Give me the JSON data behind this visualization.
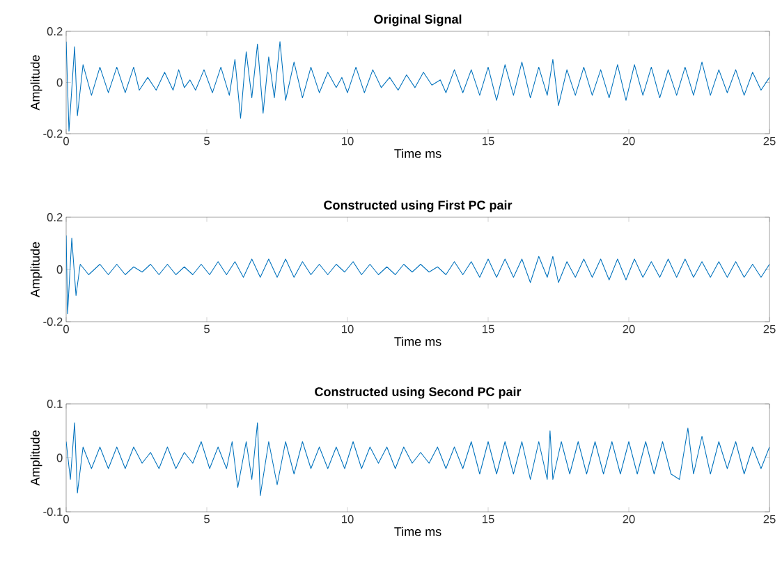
{
  "chart_data": [
    {
      "type": "line",
      "title": "Original Signal",
      "xlabel": "Time ms",
      "ylabel": "Amplitude",
      "xlim": [
        0,
        25
      ],
      "ylim": [
        -0.2,
        0.2
      ],
      "xticks": [
        0,
        5,
        10,
        15,
        20,
        25
      ],
      "yticks": [
        -0.2,
        0,
        0.2
      ],
      "x": [
        0,
        0.1,
        0.3,
        0.4,
        0.6,
        0.9,
        1.2,
        1.5,
        1.8,
        2.1,
        2.4,
        2.6,
        2.9,
        3.2,
        3.5,
        3.8,
        4.0,
        4.2,
        4.4,
        4.6,
        4.9,
        5.2,
        5.5,
        5.8,
        6.0,
        6.2,
        6.4,
        6.6,
        6.8,
        7.0,
        7.2,
        7.4,
        7.6,
        7.8,
        8.1,
        8.4,
        8.7,
        9.0,
        9.3,
        9.6,
        9.8,
        10.0,
        10.3,
        10.6,
        10.9,
        11.2,
        11.5,
        11.8,
        12.1,
        12.4,
        12.7,
        13.0,
        13.3,
        13.5,
        13.8,
        14.1,
        14.4,
        14.7,
        15.0,
        15.3,
        15.6,
        15.9,
        16.2,
        16.5,
        16.8,
        17.1,
        17.3,
        17.5,
        17.8,
        18.1,
        18.4,
        18.7,
        19.0,
        19.3,
        19.6,
        19.9,
        20.2,
        20.5,
        20.8,
        21.1,
        21.4,
        21.7,
        22.0,
        22.3,
        22.6,
        22.9,
        23.2,
        23.5,
        23.8,
        24.1,
        24.4,
        24.7,
        25.0
      ],
      "series": [
        {
          "color": "#0072bd",
          "values": [
            0.16,
            -0.19,
            0.14,
            -0.13,
            0.07,
            -0.05,
            0.06,
            -0.04,
            0.06,
            -0.04,
            0.06,
            -0.03,
            0.02,
            -0.03,
            0.04,
            -0.03,
            0.05,
            -0.02,
            0.01,
            -0.03,
            0.05,
            -0.04,
            0.06,
            -0.05,
            0.09,
            -0.14,
            0.12,
            -0.06,
            0.15,
            -0.12,
            0.1,
            -0.06,
            0.16,
            -0.07,
            0.08,
            -0.06,
            0.06,
            -0.04,
            0.04,
            -0.02,
            0.02,
            -0.04,
            0.06,
            -0.04,
            0.05,
            -0.02,
            0.02,
            -0.03,
            0.03,
            -0.02,
            0.04,
            -0.01,
            0.01,
            -0.04,
            0.05,
            -0.04,
            0.05,
            -0.05,
            0.06,
            -0.07,
            0.07,
            -0.05,
            0.08,
            -0.06,
            0.06,
            -0.05,
            0.09,
            -0.09,
            0.05,
            -0.05,
            0.06,
            -0.05,
            0.05,
            -0.06,
            0.07,
            -0.07,
            0.07,
            -0.05,
            0.06,
            -0.06,
            0.05,
            -0.05,
            0.06,
            -0.05,
            0.08,
            -0.05,
            0.05,
            -0.04,
            0.05,
            -0.05,
            0.04,
            -0.03,
            0.02
          ]
        }
      ]
    },
    {
      "type": "line",
      "title": "Constructed using First PC pair",
      "xlabel": "Time ms",
      "ylabel": "Amplitude",
      "xlim": [
        0,
        25
      ],
      "ylim": [
        -0.2,
        0.2
      ],
      "xticks": [
        0,
        5,
        10,
        15,
        20,
        25
      ],
      "yticks": [
        -0.2,
        0,
        0.2
      ],
      "x": [
        0,
        0.05,
        0.2,
        0.35,
        0.5,
        0.8,
        1.2,
        1.5,
        1.8,
        2.1,
        2.4,
        2.7,
        3.0,
        3.3,
        3.6,
        3.9,
        4.2,
        4.5,
        4.8,
        5.1,
        5.4,
        5.7,
        6.0,
        6.3,
        6.6,
        6.9,
        7.2,
        7.5,
        7.8,
        8.1,
        8.4,
        8.7,
        9.0,
        9.3,
        9.6,
        9.9,
        10.2,
        10.5,
        10.8,
        11.1,
        11.4,
        11.7,
        12.0,
        12.3,
        12.6,
        12.9,
        13.2,
        13.5,
        13.8,
        14.1,
        14.4,
        14.7,
        15.0,
        15.3,
        15.6,
        15.9,
        16.2,
        16.5,
        16.8,
        17.1,
        17.3,
        17.5,
        17.8,
        18.1,
        18.4,
        18.7,
        19.0,
        19.3,
        19.6,
        19.9,
        20.2,
        20.5,
        20.8,
        21.1,
        21.4,
        21.7,
        22.0,
        22.3,
        22.6,
        22.9,
        23.2,
        23.5,
        23.8,
        24.1,
        24.4,
        24.7,
        25.0
      ],
      "series": [
        {
          "color": "#0072bd",
          "values": [
            0.13,
            -0.17,
            0.12,
            -0.1,
            0.02,
            -0.02,
            0.02,
            -0.02,
            0.02,
            -0.02,
            0.01,
            -0.01,
            0.02,
            -0.02,
            0.02,
            -0.02,
            0.01,
            -0.02,
            0.02,
            -0.02,
            0.03,
            -0.02,
            0.03,
            -0.03,
            0.04,
            -0.03,
            0.04,
            -0.03,
            0.04,
            -0.03,
            0.03,
            -0.02,
            0.02,
            -0.02,
            0.02,
            -0.01,
            0.03,
            -0.02,
            0.02,
            -0.02,
            0.01,
            -0.02,
            0.02,
            -0.01,
            0.02,
            -0.01,
            0.01,
            -0.02,
            0.03,
            -0.02,
            0.03,
            -0.03,
            0.04,
            -0.03,
            0.04,
            -0.03,
            0.04,
            -0.05,
            0.05,
            -0.03,
            0.05,
            -0.05,
            0.03,
            -0.03,
            0.04,
            -0.03,
            0.04,
            -0.04,
            0.04,
            -0.04,
            0.04,
            -0.03,
            0.03,
            -0.03,
            0.04,
            -0.03,
            0.04,
            -0.03,
            0.03,
            -0.03,
            0.03,
            -0.03,
            0.03,
            -0.03,
            0.02,
            -0.03,
            0.02
          ]
        }
      ]
    },
    {
      "type": "line",
      "title": "Constructed using Second PC pair",
      "xlabel": "Time ms",
      "ylabel": "Amplitude",
      "xlim": [
        0,
        25
      ],
      "ylim": [
        -0.1,
        0.1
      ],
      "xticks": [
        0,
        5,
        10,
        15,
        20,
        25
      ],
      "yticks": [
        -0.1,
        0,
        0.1
      ],
      "x": [
        0,
        0.15,
        0.3,
        0.4,
        0.6,
        0.9,
        1.2,
        1.5,
        1.8,
        2.1,
        2.4,
        2.7,
        3.0,
        3.3,
        3.6,
        3.9,
        4.2,
        4.5,
        4.8,
        5.1,
        5.4,
        5.7,
        5.9,
        6.1,
        6.4,
        6.6,
        6.8,
        6.9,
        7.2,
        7.5,
        7.8,
        8.1,
        8.4,
        8.7,
        9.0,
        9.3,
        9.6,
        9.9,
        10.2,
        10.5,
        10.8,
        11.1,
        11.4,
        11.7,
        12.0,
        12.3,
        12.6,
        12.9,
        13.2,
        13.5,
        13.8,
        14.1,
        14.4,
        14.7,
        15.0,
        15.3,
        15.6,
        15.9,
        16.2,
        16.5,
        16.8,
        17.1,
        17.2,
        17.3,
        17.6,
        17.9,
        18.2,
        18.5,
        18.8,
        19.1,
        19.4,
        19.7,
        20.0,
        20.3,
        20.6,
        20.9,
        21.2,
        21.5,
        21.8,
        22.1,
        22.3,
        22.6,
        22.9,
        23.2,
        23.5,
        23.8,
        24.1,
        24.4,
        24.7,
        25.0
      ],
      "series": [
        {
          "color": "#0072bd",
          "values": [
            0.03,
            -0.04,
            0.065,
            -0.065,
            0.02,
            -0.02,
            0.02,
            -0.02,
            0.02,
            -0.02,
            0.02,
            -0.01,
            0.01,
            -0.02,
            0.02,
            -0.02,
            0.01,
            -0.01,
            0.03,
            -0.02,
            0.02,
            -0.02,
            0.03,
            -0.055,
            0.03,
            -0.04,
            0.065,
            -0.07,
            0.03,
            -0.05,
            0.03,
            -0.03,
            0.03,
            -0.02,
            0.02,
            -0.02,
            0.02,
            -0.02,
            0.03,
            -0.02,
            0.02,
            -0.01,
            0.02,
            -0.02,
            0.02,
            -0.01,
            0.01,
            -0.01,
            0.02,
            -0.02,
            0.02,
            -0.02,
            0.03,
            -0.03,
            0.03,
            -0.03,
            0.03,
            -0.03,
            0.03,
            -0.04,
            0.03,
            -0.04,
            0.05,
            -0.04,
            0.03,
            -0.03,
            0.03,
            -0.03,
            0.03,
            -0.03,
            0.03,
            -0.03,
            0.03,
            -0.03,
            0.03,
            -0.03,
            0.03,
            -0.03,
            -0.04,
            0.055,
            -0.03,
            0.04,
            -0.03,
            0.03,
            -0.02,
            0.03,
            -0.03,
            0.02,
            -0.02,
            0.02
          ]
        }
      ]
    }
  ]
}
